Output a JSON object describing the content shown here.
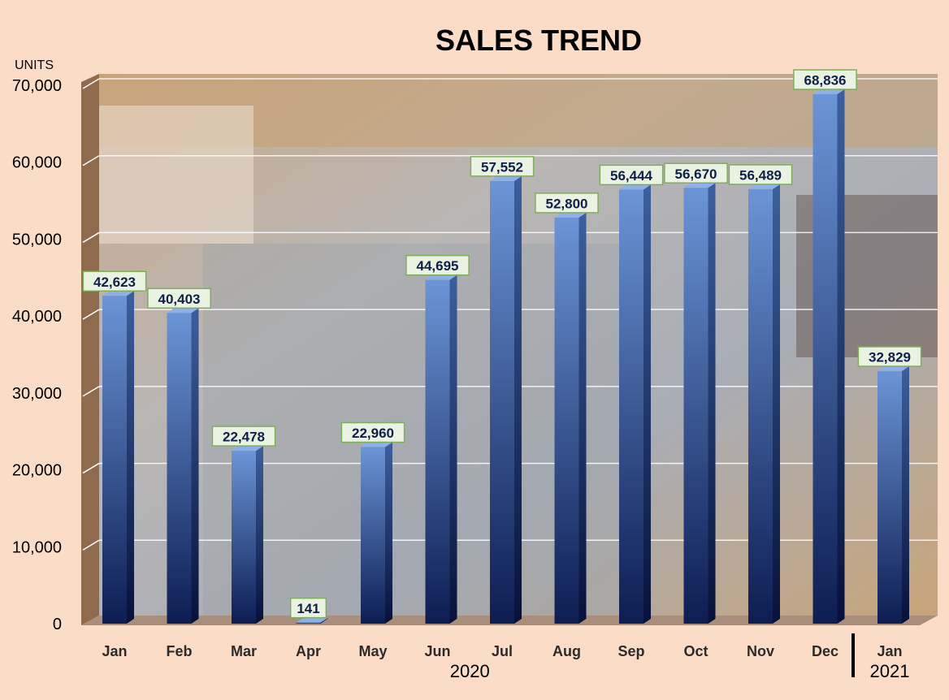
{
  "chart_data": {
    "type": "bar",
    "title": "SALES TREND",
    "ylabel": "UNITS",
    "xlabel": "",
    "ylim": [
      0,
      70000
    ],
    "yticks": [
      0,
      10000,
      20000,
      30000,
      40000,
      50000,
      60000,
      70000
    ],
    "ytick_labels": [
      "0",
      "10,000",
      "20,000",
      "30,000",
      "40,000",
      "50,000",
      "60,000",
      "70,000"
    ],
    "grid": true,
    "categories": [
      "Jan",
      "Feb",
      "Mar",
      "Apr",
      "May",
      "Jun",
      "Jul",
      "Aug",
      "Sep",
      "Oct",
      "Nov",
      "Dec",
      "Jan"
    ],
    "values": [
      42623,
      40403,
      22478,
      141,
      22960,
      44695,
      57552,
      52800,
      56444,
      56670,
      56489,
      68836,
      32829
    ],
    "value_labels": [
      "42,623",
      "40,403",
      "22,478",
      "141",
      "22,960",
      "44,695",
      "57,552",
      "52,800",
      "56,444",
      "56,670",
      "56,489",
      "68,836",
      "32,829"
    ],
    "year_groups": [
      {
        "label": "2020",
        "from": 0,
        "to": 11
      },
      {
        "label": "2021",
        "from": 12,
        "to": 12
      }
    ],
    "colors": {
      "bar_top": "#6b95d6",
      "bar_bottom": "#0d1d52",
      "label_bg": "#eaf3e2",
      "label_border": "#7fae5a",
      "label_text": "#0f1f4a",
      "background": "#fbdcc6"
    }
  }
}
